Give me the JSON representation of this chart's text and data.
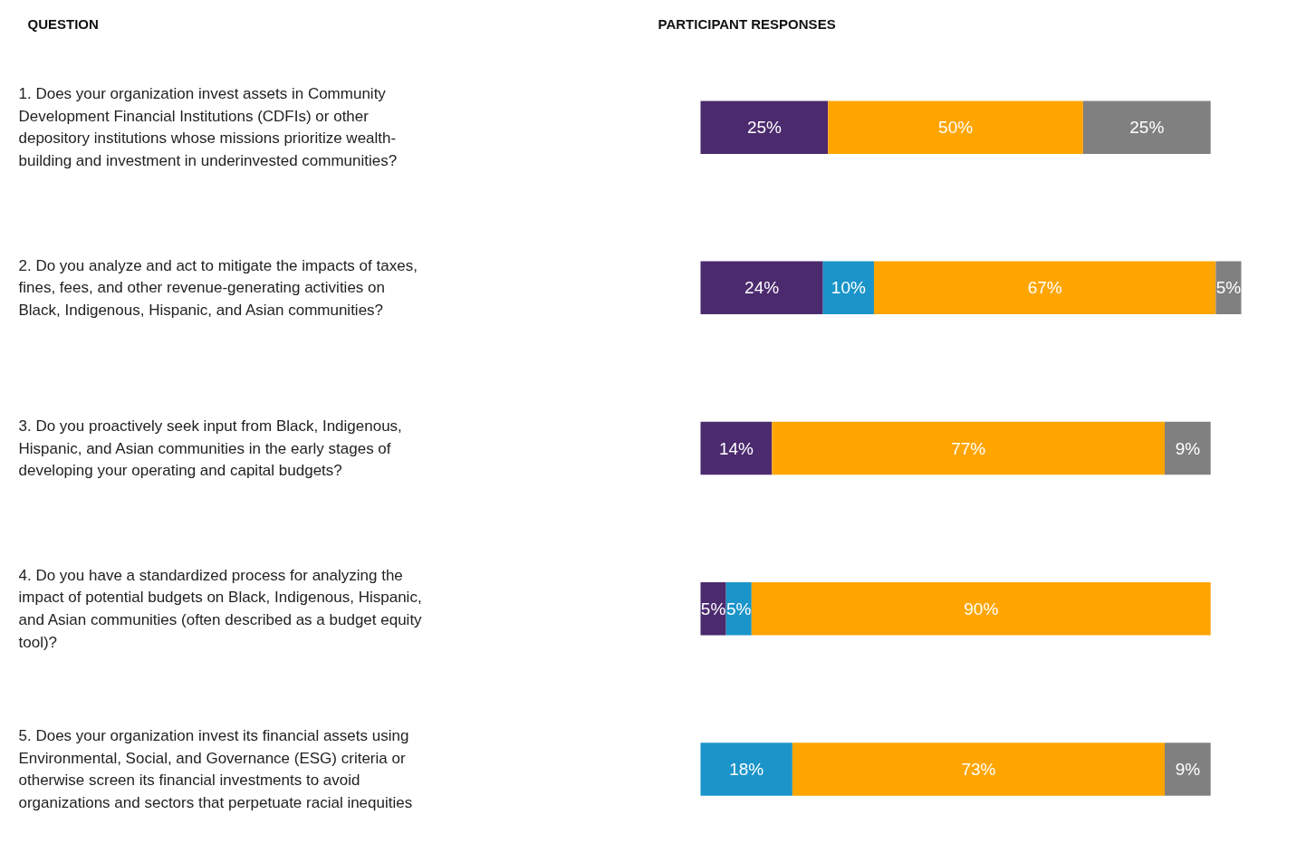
{
  "chart_data": {
    "type": "bar",
    "orientation": "horizontal",
    "stacked": true,
    "grid": false,
    "tick_labels": false,
    "annotations": [
      "QUESTION",
      "PARTICIPANT RESPONSES"
    ],
    "categories": [
      "1. Does your organization invest assets in Community Development Financial Institutions (CDFIs) or other depository institutions whose missions prioritize wealth-building and investment in underinvested communities?",
      "2. Do you analyze and act to mitigate the impacts of taxes, fines, fees, and other revenue-generating activities on Black, Indigenous, Hispanic, and Asian communities?",
      "3. Do you proactively seek input from Black, Indigenous, Hispanic, and Asian communities in the early stages of developing your operating and capital budgets?",
      "4. Do you have a standardized process for analyzing the impact of potential budgets on Black, Indigenous, Hispanic, and Asian communities (often described as a budget equity tool)?",
      "5. Does your organization invest its financial assets using Environmental, Social, and Governance (ESG) criteria or otherwise screen its financial investments to avoid organizations and sectors that perpetuate racial inequities"
    ],
    "series": [
      {
        "color": "#4b2a6e",
        "values": [
          25,
          24,
          14,
          5,
          null
        ],
        "value_labels": [
          "25%",
          "24%",
          "14%",
          "5%",
          null
        ]
      },
      {
        "color": "#1a94c9",
        "values": [
          null,
          10,
          null,
          5,
          18
        ],
        "value_labels": [
          null,
          "10%",
          null,
          "5%",
          "18%"
        ]
      },
      {
        "color": "#ffa500",
        "values": [
          50,
          67,
          77,
          90,
          73
        ],
        "value_labels": [
          "50%",
          "67%",
          "77%",
          "90%",
          "73%"
        ]
      },
      {
        "color": "#808080",
        "values": [
          25,
          5,
          9,
          null,
          9
        ],
        "value_labels": [
          "25%",
          "5%",
          "9%",
          null,
          "9%"
        ]
      }
    ]
  }
}
